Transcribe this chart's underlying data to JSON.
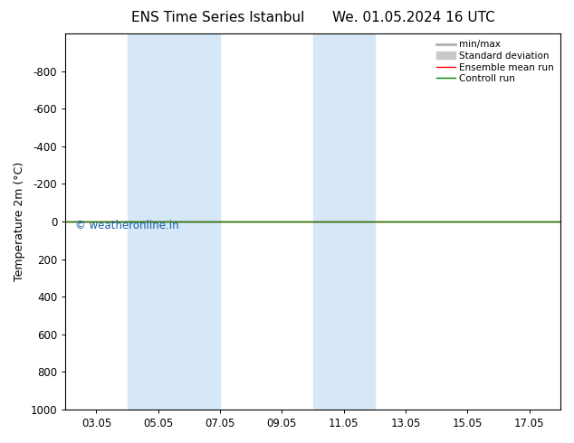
{
  "title_left": "ENS Time Series Istanbul",
  "title_right": "We. 01.05.2024 16 UTC",
  "ylabel": "Temperature 2m (°C)",
  "xlim_dates": [
    "03.05",
    "05.05",
    "07.05",
    "09.05",
    "11.05",
    "13.05",
    "15.05",
    "17.05"
  ],
  "xlim": [
    0,
    7
  ],
  "ylim": [
    -1000,
    1000
  ],
  "yticks": [
    -800,
    -600,
    -400,
    -200,
    0,
    200,
    400,
    600,
    800,
    1000
  ],
  "background_color": "#ffffff",
  "plot_bg_color": "#ffffff",
  "shaded_bands": [
    {
      "x_start": 1.0,
      "x_end": 2.5
    },
    {
      "x_start": 4.0,
      "x_end": 5.0
    }
  ],
  "shaded_color": "#d6e8f7",
  "watermark": "© weatheronline.in",
  "watermark_color": "#1a5faa",
  "ensemble_mean_color": "#ff0000",
  "control_run_color": "#008000",
  "std_dev_color": "#c8c8c8",
  "minmax_color": "#b0b0b0",
  "legend_entries": [
    "min/max",
    "Standard deviation",
    "Ensemble mean run",
    "Controll run"
  ],
  "title_fontsize": 11,
  "axis_fontsize": 9,
  "tick_fontsize": 8.5,
  "legend_fontsize": 7.5
}
